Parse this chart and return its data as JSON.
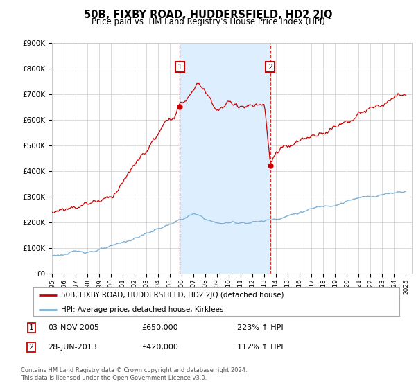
{
  "title": "50B, FIXBY ROAD, HUDDERSFIELD, HD2 2JQ",
  "subtitle": "Price paid vs. HM Land Registry's House Price Index (HPI)",
  "ylim": [
    0,
    900000
  ],
  "xlim_start": 1995.0,
  "xlim_end": 2025.5,
  "sale1_date": 2005.84,
  "sale1_price": 650000,
  "sale1_label": "1",
  "sale1_text1": "03-NOV-2005",
  "sale1_text2": "£650,000",
  "sale1_text3": "223% ↑ HPI",
  "sale2_date": 2013.49,
  "sale2_price": 420000,
  "sale2_label": "2",
  "sale2_text1": "28-JUN-2013",
  "sale2_text2": "£420,000",
  "sale2_text3": "112% ↑ HPI",
  "red_color": "#cc0000",
  "blue_color": "#7bafd4",
  "shade_color": "#ddeeff",
  "legend_line1": "50B, FIXBY ROAD, HUDDERSFIELD, HD2 2JQ (detached house)",
  "legend_line2": "HPI: Average price, detached house, Kirklees",
  "footer1": "Contains HM Land Registry data © Crown copyright and database right 2024.",
  "footer2": "This data is licensed under the Open Government Licence v3.0.",
  "background_color": "#ffffff",
  "grid_color": "#cccccc"
}
